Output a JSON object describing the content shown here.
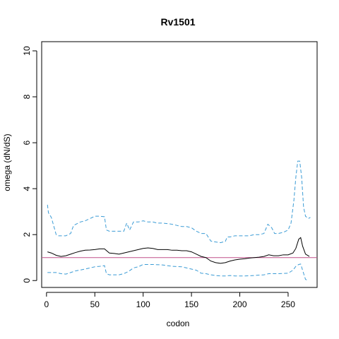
{
  "chart_data": {
    "type": "line",
    "title": "Rv1501",
    "xlabel": "codon",
    "ylabel": "omega (dN/dS)",
    "xlim": [
      -5,
      280
    ],
    "ylim": [
      -0.3,
      10.4
    ],
    "x_ticks": [
      0,
      50,
      100,
      150,
      200,
      250
    ],
    "y_ticks": [
      0,
      2,
      4,
      6,
      8,
      10
    ],
    "grid": false,
    "legend": "none",
    "reference_line": {
      "y": 1,
      "color": "#c0508a"
    },
    "series": [
      {
        "style": "solid",
        "color": "#000000",
        "points": [
          [
            1,
            1.25
          ],
          [
            5,
            1.2
          ],
          [
            10,
            1.1
          ],
          [
            15,
            1.05
          ],
          [
            20,
            1.08
          ],
          [
            25,
            1.15
          ],
          [
            30,
            1.22
          ],
          [
            35,
            1.28
          ],
          [
            40,
            1.32
          ],
          [
            45,
            1.33
          ],
          [
            50,
            1.35
          ],
          [
            55,
            1.38
          ],
          [
            60,
            1.38
          ],
          [
            65,
            1.2
          ],
          [
            70,
            1.18
          ],
          [
            75,
            1.15
          ],
          [
            80,
            1.2
          ],
          [
            85,
            1.25
          ],
          [
            90,
            1.3
          ],
          [
            95,
            1.35
          ],
          [
            100,
            1.4
          ],
          [
            105,
            1.42
          ],
          [
            110,
            1.4
          ],
          [
            115,
            1.35
          ],
          [
            120,
            1.35
          ],
          [
            125,
            1.35
          ],
          [
            130,
            1.32
          ],
          [
            135,
            1.32
          ],
          [
            140,
            1.3
          ],
          [
            145,
            1.3
          ],
          [
            150,
            1.25
          ],
          [
            155,
            1.15
          ],
          [
            160,
            1.05
          ],
          [
            165,
            1.0
          ],
          [
            170,
            0.85
          ],
          [
            175,
            0.78
          ],
          [
            180,
            0.75
          ],
          [
            185,
            0.78
          ],
          [
            190,
            0.85
          ],
          [
            195,
            0.9
          ],
          [
            200,
            0.93
          ],
          [
            205,
            0.95
          ],
          [
            210,
            0.98
          ],
          [
            215,
            1.0
          ],
          [
            220,
            1.02
          ],
          [
            225,
            1.05
          ],
          [
            230,
            1.12
          ],
          [
            235,
            1.08
          ],
          [
            240,
            1.08
          ],
          [
            245,
            1.12
          ],
          [
            250,
            1.12
          ],
          [
            255,
            1.2
          ],
          [
            258,
            1.4
          ],
          [
            261,
            1.8
          ],
          [
            263,
            1.87
          ],
          [
            265,
            1.5
          ],
          [
            268,
            1.15
          ],
          [
            272,
            1.05
          ]
        ]
      },
      {
        "style": "dashed",
        "color": "#3a9bd5",
        "points": [
          [
            1,
            3.3
          ],
          [
            2,
            2.95
          ],
          [
            5,
            2.75
          ],
          [
            8,
            2.3
          ],
          [
            10,
            2.0
          ],
          [
            12,
            1.95
          ],
          [
            20,
            1.95
          ],
          [
            25,
            2.05
          ],
          [
            28,
            2.4
          ],
          [
            35,
            2.55
          ],
          [
            40,
            2.6
          ],
          [
            45,
            2.7
          ],
          [
            50,
            2.8
          ],
          [
            55,
            2.8
          ],
          [
            60,
            2.78
          ],
          [
            62,
            2.2
          ],
          [
            65,
            2.15
          ],
          [
            80,
            2.15
          ],
          [
            83,
            2.5
          ],
          [
            86,
            2.2
          ],
          [
            90,
            2.55
          ],
          [
            95,
            2.55
          ],
          [
            100,
            2.6
          ],
          [
            105,
            2.55
          ],
          [
            110,
            2.55
          ],
          [
            115,
            2.5
          ],
          [
            120,
            2.5
          ],
          [
            125,
            2.48
          ],
          [
            130,
            2.45
          ],
          [
            135,
            2.4
          ],
          [
            140,
            2.35
          ],
          [
            145,
            2.35
          ],
          [
            150,
            2.3
          ],
          [
            155,
            2.15
          ],
          [
            160,
            2.05
          ],
          [
            165,
            2.05
          ],
          [
            170,
            1.72
          ],
          [
            175,
            1.68
          ],
          [
            180,
            1.65
          ],
          [
            185,
            1.7
          ],
          [
            187,
            1.9
          ],
          [
            190,
            1.9
          ],
          [
            195,
            1.95
          ],
          [
            200,
            1.95
          ],
          [
            210,
            1.95
          ],
          [
            215,
            2.0
          ],
          [
            220,
            2.0
          ],
          [
            225,
            2.05
          ],
          [
            229,
            2.45
          ],
          [
            233,
            2.3
          ],
          [
            236,
            2.05
          ],
          [
            240,
            2.05
          ],
          [
            245,
            2.1
          ],
          [
            250,
            2.2
          ],
          [
            253,
            2.5
          ],
          [
            256,
            3.5
          ],
          [
            258,
            4.5
          ],
          [
            260,
            5.2
          ],
          [
            262,
            5.2
          ],
          [
            264,
            4.5
          ],
          [
            266,
            3.2
          ],
          [
            268,
            2.8
          ],
          [
            271,
            2.7
          ],
          [
            273,
            2.75
          ]
        ]
      },
      {
        "style": "dashed",
        "color": "#3a9bd5",
        "points": [
          [
            1,
            0.35
          ],
          [
            10,
            0.35
          ],
          [
            15,
            0.3
          ],
          [
            20,
            0.28
          ],
          [
            25,
            0.35
          ],
          [
            30,
            0.42
          ],
          [
            40,
            0.5
          ],
          [
            50,
            0.6
          ],
          [
            55,
            0.62
          ],
          [
            60,
            0.65
          ],
          [
            62,
            0.3
          ],
          [
            65,
            0.25
          ],
          [
            75,
            0.25
          ],
          [
            80,
            0.3
          ],
          [
            85,
            0.4
          ],
          [
            90,
            0.55
          ],
          [
            95,
            0.6
          ],
          [
            100,
            0.7
          ],
          [
            110,
            0.7
          ],
          [
            120,
            0.68
          ],
          [
            130,
            0.62
          ],
          [
            140,
            0.6
          ],
          [
            145,
            0.55
          ],
          [
            150,
            0.5
          ],
          [
            155,
            0.45
          ],
          [
            160,
            0.32
          ],
          [
            165,
            0.3
          ],
          [
            170,
            0.25
          ],
          [
            175,
            0.22
          ],
          [
            180,
            0.2
          ],
          [
            185,
            0.2
          ],
          [
            190,
            0.22
          ],
          [
            195,
            0.2
          ],
          [
            205,
            0.2
          ],
          [
            215,
            0.22
          ],
          [
            225,
            0.25
          ],
          [
            230,
            0.3
          ],
          [
            240,
            0.3
          ],
          [
            250,
            0.32
          ],
          [
            255,
            0.45
          ],
          [
            258,
            0.62
          ],
          [
            261,
            0.7
          ],
          [
            263,
            0.72
          ],
          [
            265,
            0.45
          ],
          [
            268,
            0.05
          ],
          [
            271,
            0.0
          ]
        ]
      }
    ]
  }
}
